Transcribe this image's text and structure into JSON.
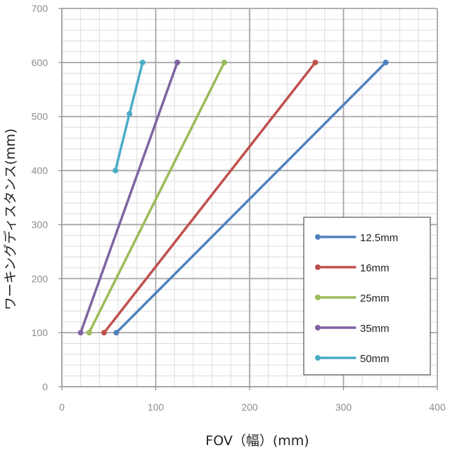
{
  "chart_data": {
    "type": "line",
    "title": "",
    "xlabel": "FOV（幅）(mm)",
    "ylabel": "ワーキングディスタンス(mm)",
    "xlim": [
      0,
      400
    ],
    "ylim": [
      0,
      700
    ],
    "x_ticks": [
      0,
      100,
      200,
      300,
      400
    ],
    "y_ticks": [
      0,
      100,
      200,
      300,
      400,
      500,
      600,
      700
    ],
    "grid": true,
    "legend_position": "bottom-right",
    "series": [
      {
        "name": "12.5mm",
        "color": "#4f81bd",
        "points": [
          [
            58,
            100
          ],
          [
            345,
            600
          ]
        ]
      },
      {
        "name": "16mm",
        "color": "#c0504d",
        "points": [
          [
            45,
            100
          ],
          [
            270,
            600
          ]
        ]
      },
      {
        "name": "25mm",
        "color": "#9bbb59",
        "points": [
          [
            29,
            100
          ],
          [
            173,
            600
          ]
        ]
      },
      {
        "name": "35mm",
        "color": "#8064a2",
        "points": [
          [
            20,
            100
          ],
          [
            123,
            600
          ]
        ]
      },
      {
        "name": "50mm",
        "color": "#4bacc6",
        "points": [
          [
            57,
            400
          ],
          [
            72,
            505
          ],
          [
            86,
            600
          ]
        ]
      }
    ]
  }
}
